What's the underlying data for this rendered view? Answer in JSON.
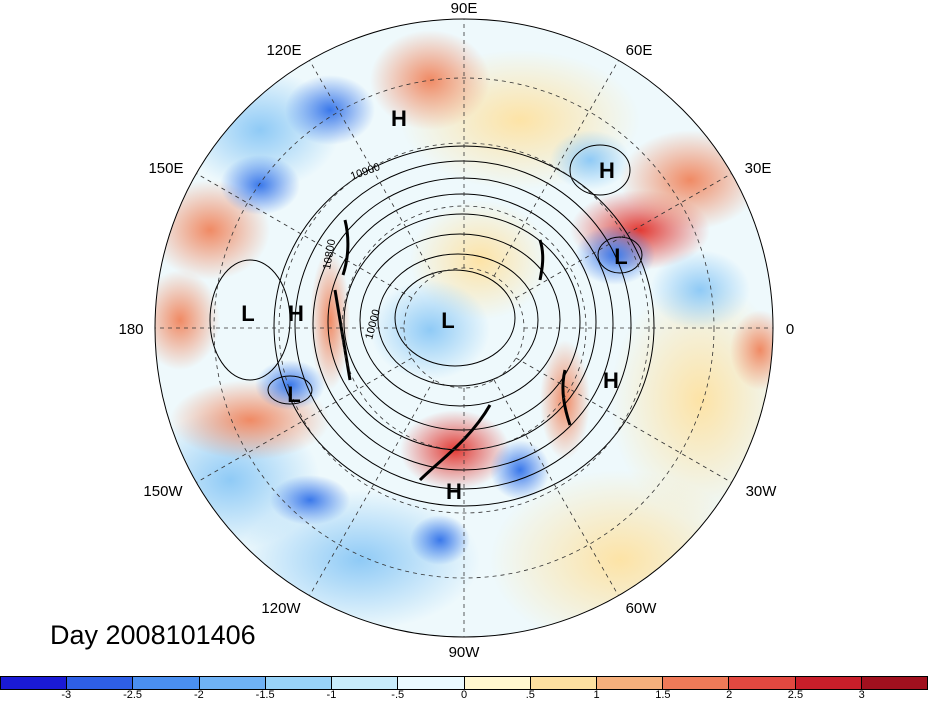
{
  "title": "Day 2008101406",
  "longitude_labels": [
    "90E",
    "60E",
    "30E",
    "0",
    "30W",
    "60W",
    "90W",
    "120W",
    "150W",
    "180",
    "150E",
    "120E"
  ],
  "pressure_centers": [
    {
      "label": "H",
      "name": "high-center-east-asia"
    },
    {
      "label": "H",
      "name": "high-center-siberia"
    },
    {
      "label": "L",
      "name": "low-center-europe"
    },
    {
      "label": "L",
      "name": "low-center-pacific-west"
    },
    {
      "label": "H",
      "name": "high-center-pacific"
    },
    {
      "label": "L",
      "name": "low-center-pole"
    },
    {
      "label": "H",
      "name": "high-center-atlantic"
    },
    {
      "label": "L",
      "name": "low-center-gulf-alaska"
    },
    {
      "label": "H",
      "name": "high-center-north-america"
    }
  ],
  "contour_labels": [
    "10900",
    "10800",
    "10000"
  ],
  "colorbar": {
    "tick_labels": [
      "-3",
      "-2.5",
      "-2",
      "-1.5",
      "-1",
      "-.5",
      "0",
      ".5",
      "1",
      "1.5",
      "2",
      "2.5",
      "3"
    ],
    "colors": [
      "#1a1ad6",
      "#2e5fe6",
      "#4a8ff0",
      "#6fb2f5",
      "#99d3f8",
      "#c8ecfb",
      "#eafaff",
      "#fff7cf",
      "#fde0a0",
      "#f6b07c",
      "#ef7a58",
      "#e24840",
      "#c81e2a",
      "#a0101e"
    ]
  }
}
